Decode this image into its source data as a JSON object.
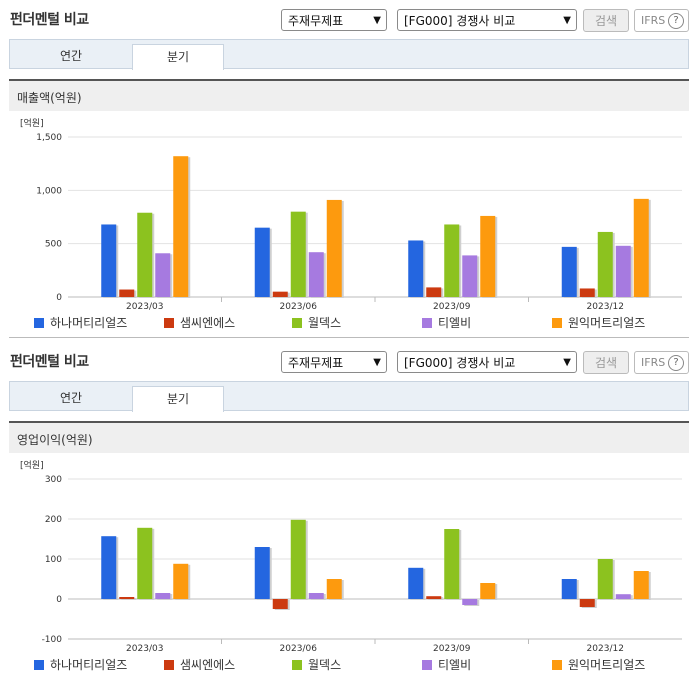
{
  "panels": [
    {
      "title": "펀더멘털 비교",
      "select1": "주재무제표",
      "select2": "[FG000] 경쟁사 비교",
      "search_label": "검색",
      "ifrs_label": "IFRS",
      "help_glyph": "?",
      "tabs": [
        "연간",
        "분기"
      ],
      "active_tab": "분기",
      "section_label": "매출액(억원)"
    },
    {
      "title": "펀더멘털 비교",
      "select1": "주재무제표",
      "select2": "[FG000] 경쟁사 비교",
      "search_label": "검색",
      "ifrs_label": "IFRS",
      "help_glyph": "?",
      "tabs": [
        "연간",
        "분기"
      ],
      "active_tab": "분기",
      "section_label": "영업이익(억원)"
    }
  ],
  "chart_data": [
    {
      "type": "bar",
      "unit_label": "[억원]",
      "categories": [
        "2023/03",
        "2023/06",
        "2023/09",
        "2023/12"
      ],
      "ylim": [
        0,
        1500
      ],
      "yticks": [
        0,
        500,
        1000,
        1500
      ],
      "ytick_labels": [
        "0",
        "500",
        "1,000",
        "1,500"
      ],
      "series": [
        {
          "name": "하나머티리얼즈",
          "color": "#2466e0",
          "values": [
            680,
            650,
            530,
            470
          ]
        },
        {
          "name": "샘씨엔에스",
          "color": "#cc3a10",
          "values": [
            70,
            50,
            90,
            80
          ]
        },
        {
          "name": "월덱스",
          "color": "#8cc21f",
          "values": [
            790,
            800,
            680,
            610
          ]
        },
        {
          "name": "티엘비",
          "color": "#a67ae0",
          "values": [
            410,
            420,
            390,
            480
          ]
        },
        {
          "name": "원익머트리얼즈",
          "color": "#fd9a0e",
          "values": [
            1320,
            910,
            760,
            920
          ]
        }
      ]
    },
    {
      "type": "bar",
      "unit_label": "[억원]",
      "categories": [
        "2023/03",
        "2023/06",
        "2023/09",
        "2023/12"
      ],
      "ylim": [
        -100,
        300
      ],
      "yticks": [
        -100,
        0,
        100,
        200,
        300
      ],
      "ytick_labels": [
        "-100",
        "0",
        "100",
        "200",
        "300"
      ],
      "series": [
        {
          "name": "하나머티리얼즈",
          "color": "#2466e0",
          "values": [
            157,
            130,
            78,
            50
          ]
        },
        {
          "name": "샘씨엔에스",
          "color": "#cc3a10",
          "values": [
            5,
            -25,
            7,
            -20
          ]
        },
        {
          "name": "월덱스",
          "color": "#8cc21f",
          "values": [
            178,
            198,
            175,
            100
          ]
        },
        {
          "name": "티엘비",
          "color": "#a67ae0",
          "values": [
            15,
            15,
            -15,
            12
          ]
        },
        {
          "name": "원익머트리얼즈",
          "color": "#fd9a0e",
          "values": [
            88,
            50,
            40,
            70
          ]
        }
      ]
    }
  ]
}
